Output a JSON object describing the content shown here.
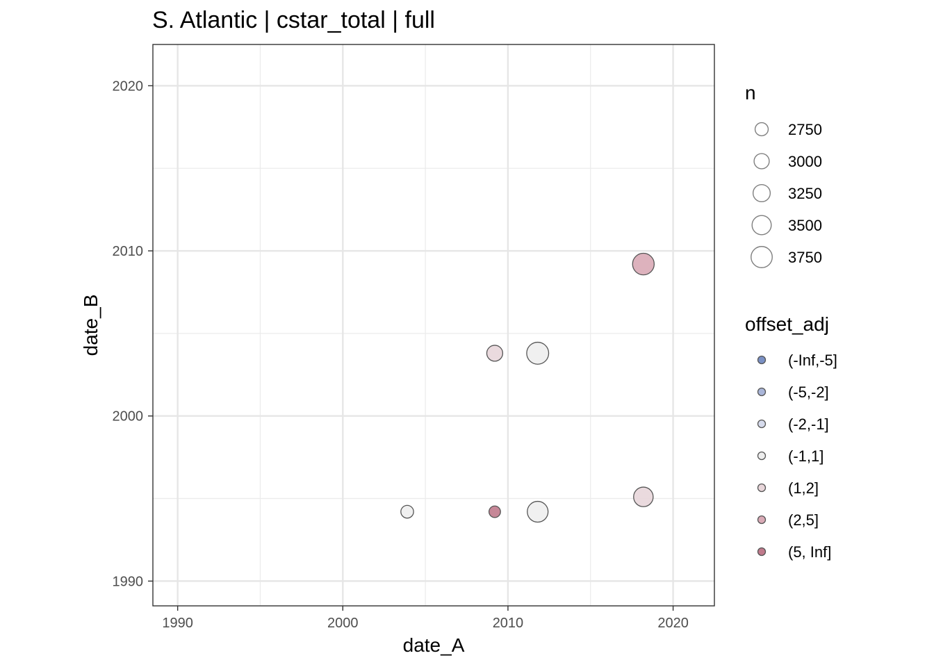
{
  "chart_data": {
    "type": "scatter",
    "title": "S. Atlantic | cstar_total | full",
    "xlabel": "date_A",
    "ylabel": "date_B",
    "xlim": [
      1988.5,
      2022.5
    ],
    "ylim": [
      1988.5,
      2022.5
    ],
    "x_ticks": [
      1990,
      2000,
      2010,
      2020
    ],
    "y_ticks": [
      1990,
      2000,
      2010,
      2020
    ],
    "x_tick_labels": [
      "1990",
      "2000",
      "2010",
      "2020"
    ],
    "y_tick_labels": [
      "1990",
      "2000",
      "2010",
      "2020"
    ],
    "grid": true,
    "size_legend": {
      "title": "n",
      "breaks": [
        2750,
        3000,
        3250,
        3500,
        3750
      ],
      "labels": [
        "2750",
        "3000",
        "3250",
        "3500",
        "3750"
      ]
    },
    "color_legend": {
      "title": "offset_adj",
      "labels": [
        "(-Inf,-5]",
        "(-5,-2]",
        "(-2,-1]",
        "(-1,1]",
        "(1,2]",
        "(2,5]",
        "(5, Inf]"
      ],
      "colors": [
        "#7a90c4",
        "#aab6d9",
        "#d6dbec",
        "#eeeeee",
        "#e8d6da",
        "#d9aab6",
        "#c07a8c"
      ]
    },
    "points": [
      {
        "x": 2003.9,
        "y": 1994.2,
        "n": 2700,
        "offset_class": "(-1,1]"
      },
      {
        "x": 2009.2,
        "y": 1994.2,
        "n": 2550,
        "offset_class": "(5, Inf]"
      },
      {
        "x": 2011.8,
        "y": 1994.2,
        "n": 3700,
        "offset_class": "(-1,1]"
      },
      {
        "x": 2018.2,
        "y": 1995.1,
        "n": 3550,
        "offset_class": "(1,2]"
      },
      {
        "x": 2009.2,
        "y": 2003.8,
        "n": 3100,
        "offset_class": "(1,2]"
      },
      {
        "x": 2011.8,
        "y": 2003.8,
        "n": 3850,
        "offset_class": "(-1,1]"
      },
      {
        "x": 2018.2,
        "y": 2009.2,
        "n": 3800,
        "offset_class": "(2,5]"
      }
    ]
  }
}
